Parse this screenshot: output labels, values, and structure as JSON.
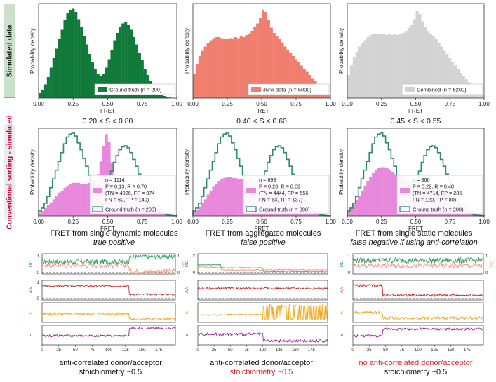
{
  "side_labels": {
    "top": "Simulated data",
    "middle": "Conventional sorting - simulated"
  },
  "colors": {
    "green": "#117a3a",
    "salmon": "#f07e6e",
    "gray": "#d3d3d3",
    "pink": "#e888dc",
    "ground_truth_line": "#2f8c6a",
    "dd": "#2e9e5c",
    "da": "#f4978a",
    "aa": "#c0282b",
    "e": "#f0a818",
    "s": "#9b2590",
    "red_text": "#e0202a"
  },
  "chart_data": [
    {
      "type": "bar",
      "xlabel": "FRET",
      "ylabel": "Probability density",
      "xlim": [
        0,
        1
      ],
      "xticks": [
        "0.00",
        "0.25",
        "0.50",
        "0.75",
        "1.00"
      ],
      "bins": 50,
      "fill": "green",
      "values": [
        0.5,
        0.8,
        1.3,
        2.0,
        2.9,
        3.8,
        4.7,
        5.6,
        6.5,
        7.4,
        8.1,
        8.4,
        8.5,
        8.2,
        7.5,
        6.8,
        5.9,
        5.1,
        4.2,
        3.4,
        2.8,
        2.3,
        2.1,
        2.3,
        2.9,
        3.7,
        4.6,
        5.5,
        6.2,
        6.8,
        7.1,
        7.2,
        7.0,
        6.5,
        5.8,
        5.1,
        4.3,
        3.6,
        2.8,
        2.2,
        1.6,
        1.1,
        0.7,
        0.5,
        0.3,
        0.2,
        0.1,
        0.05,
        0.02,
        0.01
      ],
      "legend": "Ground truth (n = 200)"
    },
    {
      "type": "bar",
      "xlabel": "FRET",
      "ylabel": "Probability density",
      "xlim": [
        0,
        1
      ],
      "xticks": [
        "0.00",
        "0.25",
        "0.50",
        "0.75",
        "1.00"
      ],
      "bins": 50,
      "fill": "salmon",
      "values": [
        2.3,
        3.2,
        4.0,
        4.5,
        4.9,
        5.2,
        5.5,
        5.7,
        5.8,
        5.8,
        5.7,
        5.6,
        5.6,
        5.7,
        5.6,
        5.8,
        5.7,
        5.9,
        5.8,
        6.0,
        6.1,
        6.4,
        6.8,
        7.1,
        7.6,
        8.4,
        8.2,
        7.4,
        6.7,
        6.2,
        5.9,
        5.6,
        5.3,
        4.9,
        4.6,
        4.3,
        4.0,
        3.7,
        3.4,
        3.1,
        2.8,
        2.5,
        2.2,
        1.9,
        1.6,
        1.3,
        1.0,
        0.7,
        0.5,
        0.3
      ],
      "legend": "Junk data (n = 5000)"
    },
    {
      "type": "bar",
      "xlabel": "FRET",
      "ylabel": "Probability density",
      "xlim": [
        0,
        1
      ],
      "xticks": [
        "0.00",
        "0.25",
        "0.50",
        "0.75",
        "1.00"
      ],
      "bins": 50,
      "fill": "gray",
      "values": [
        2.2,
        3.1,
        3.9,
        4.4,
        4.9,
        5.2,
        5.5,
        5.8,
        6.0,
        6.1,
        6.1,
        6.1,
        6.1,
        6.1,
        6.0,
        6.1,
        6.0,
        6.1,
        6.0,
        6.1,
        6.2,
        6.4,
        6.7,
        7.0,
        7.5,
        8.3,
        8.0,
        7.3,
        6.8,
        6.4,
        6.1,
        5.9,
        5.6,
        5.2,
        4.9,
        4.5,
        4.2,
        3.8,
        3.4,
        3.1,
        2.8,
        2.4,
        2.1,
        1.8,
        1.5,
        1.2,
        0.9,
        0.7,
        0.5,
        0.3
      ],
      "legend": "Combined (n = 5200)"
    },
    {
      "type": "bar",
      "title": "0.20 < S < 0.80",
      "xlabel": "FRET",
      "ylabel": "Probability density",
      "xlim": [
        0,
        1
      ],
      "xticks": [
        "0.00",
        "0.25",
        "0.50",
        "0.75",
        "1.00"
      ],
      "bins": 50,
      "fill": "pink",
      "values": [
        0.3,
        0.5,
        0.8,
        1.1,
        1.4,
        1.7,
        2.0,
        2.4,
        2.6,
        2.9,
        3.1,
        3.3,
        3.4,
        3.4,
        3.4,
        3.3,
        3.3,
        3.3,
        3.4,
        3.6,
        3.8,
        4.3,
        5.6,
        7.2,
        8.4,
        7.6,
        5.5,
        3.8,
        3.2,
        3.0,
        2.8,
        2.6,
        2.5,
        2.4,
        2.3,
        2.2,
        2.1,
        2.0,
        1.8,
        1.6,
        1.4,
        1.2,
        1.0,
        0.8,
        0.6,
        0.4,
        0.3,
        0.2,
        0.1,
        0.05
      ],
      "outline_values": [
        0.5,
        0.8,
        1.3,
        2.0,
        2.9,
        3.8,
        4.7,
        5.6,
        6.5,
        7.4,
        8.1,
        8.4,
        8.5,
        8.2,
        7.5,
        6.8,
        5.9,
        5.1,
        4.2,
        3.4,
        2.8,
        2.3,
        2.1,
        2.3,
        2.9,
        3.7,
        4.6,
        5.5,
        6.2,
        6.8,
        7.1,
        7.2,
        7.0,
        6.5,
        5.8,
        5.1,
        4.3,
        3.6,
        2.8,
        2.2,
        1.6,
        1.1,
        0.7,
        0.5,
        0.3,
        0.2,
        0.1,
        0.05,
        0.02,
        0.01
      ],
      "legend": [
        "n = 1114",
        "P = 0.13, R = 0.70",
        "(TN = 4026, FP = 974",
        "FN = 60, TP = 140)",
        "Ground truth (n = 200)"
      ]
    },
    {
      "type": "bar",
      "title": "0.40 < S < 0.60",
      "xlabel": "FRET",
      "ylabel": "Probability density",
      "xlim": [
        0,
        1
      ],
      "xticks": [
        "0.00",
        "0.25",
        "0.50",
        "0.75",
        "1.00"
      ],
      "bins": 50,
      "fill": "pink",
      "values": [
        0.4,
        0.6,
        0.9,
        1.3,
        1.7,
        2.2,
        2.6,
        3.0,
        3.3,
        3.6,
        3.8,
        3.9,
        4.0,
        4.0,
        3.9,
        3.9,
        3.8,
        3.8,
        3.7,
        3.7,
        3.6,
        3.6,
        3.6,
        3.6,
        3.5,
        3.6,
        3.5,
        3.4,
        3.3,
        3.3,
        3.2,
        3.1,
        3.0,
        2.9,
        2.8,
        2.7,
        2.5,
        2.3,
        2.1,
        1.9,
        1.6,
        1.4,
        1.1,
        0.9,
        0.7,
        0.5,
        0.3,
        0.2,
        0.1,
        0.05
      ],
      "outline_values": [
        0.5,
        0.8,
        1.3,
        2.0,
        2.9,
        3.8,
        4.7,
        5.6,
        6.5,
        7.4,
        8.1,
        8.4,
        8.5,
        8.2,
        7.5,
        6.8,
        5.9,
        5.1,
        4.2,
        3.4,
        2.8,
        2.3,
        2.1,
        2.3,
        2.9,
        3.7,
        4.6,
        5.5,
        6.2,
        6.8,
        7.1,
        7.2,
        7.0,
        6.5,
        5.8,
        5.1,
        4.3,
        3.6,
        2.8,
        2.2,
        1.6,
        1.1,
        0.7,
        0.5,
        0.3,
        0.2,
        0.1,
        0.05,
        0.02,
        0.01
      ],
      "legend": [
        "n = 693",
        "P = 0.20, R = 0.69",
        "(TN = 4444, FP = 556",
        "FN = 63, TP = 137)",
        "Ground truth (n = 200)"
      ]
    },
    {
      "type": "bar",
      "title": "0.45 < S < 0.55",
      "xlabel": "FRET",
      "ylabel": "Probability density",
      "xlim": [
        0,
        1
      ],
      "xticks": [
        "0.00",
        "0.25",
        "0.50",
        "0.75",
        "1.00"
      ],
      "bins": 50,
      "fill": "pink",
      "values": [
        0.5,
        0.8,
        1.2,
        1.6,
        2.1,
        2.6,
        3.1,
        3.6,
        4.0,
        4.4,
        4.7,
        4.9,
        5.0,
        5.0,
        4.9,
        4.7,
        4.5,
        4.3,
        4.1,
        3.9,
        3.8,
        3.7,
        3.6,
        3.6,
        3.5,
        3.5,
        3.4,
        3.3,
        3.2,
        3.1,
        3.0,
        2.9,
        2.8,
        2.7,
        2.6,
        2.5,
        2.3,
        2.2,
        2.0,
        1.8,
        1.6,
        1.4,
        1.2,
        1.0,
        0.8,
        0.6,
        0.4,
        0.3,
        0.2,
        0.1
      ],
      "outline_values": [
        0.5,
        0.8,
        1.3,
        2.0,
        2.9,
        3.8,
        4.7,
        5.6,
        6.5,
        7.4,
        8.1,
        8.4,
        8.5,
        8.2,
        7.5,
        6.8,
        5.9,
        5.1,
        4.2,
        3.4,
        2.8,
        2.3,
        2.1,
        2.3,
        2.9,
        3.7,
        4.6,
        5.5,
        6.2,
        6.8,
        7.1,
        7.2,
        7.0,
        6.5,
        5.8,
        5.1,
        4.3,
        3.6,
        2.8,
        2.2,
        1.6,
        1.1,
        0.7,
        0.5,
        0.3,
        0.2,
        0.1,
        0.05,
        0.02,
        0.01
      ],
      "legend": [
        "n = 366",
        "P = 0.22, R = 0.40",
        "(TN = 4714, FP = 286",
        "FN = 120, TP = 80)",
        "Ground truth (n = 200)"
      ]
    },
    {
      "type": "line",
      "kind": "traces",
      "xlim": [
        0,
        200
      ],
      "xticks": [
        "0",
        "25",
        "50",
        "75",
        "100",
        "125",
        "150",
        "175"
      ],
      "panels": [
        {
          "ylabel": "DD",
          "right_label": "DA",
          "ylim": [
            0,
            1
          ],
          "yticks": [
            "0",
            "1"
          ],
          "dashed_zero": true,
          "series": [
            {
              "color": "dd",
              "segments": [
                [
                  0,
                  130,
                  0.62
                ],
                [
                  130,
                  200,
                  0.92
                ]
              ],
              "noise": 0.14
            },
            {
              "color": "da",
              "segments": [
                [
                  0,
                  130,
                  0.42
                ],
                [
                  130,
                  200,
                  0.08
                ]
              ],
              "noise": 0.14
            }
          ]
        },
        {
          "ylabel": "AA",
          "ylim": [
            0,
            1
          ],
          "yticks": [
            "0",
            "1"
          ],
          "dashed_zero": true,
          "series": [
            {
              "color": "aa",
              "segments": [
                [
                  0,
                  130,
                  0.75
                ],
                [
                  130,
                  200,
                  0.25
                ]
              ],
              "noise": 0.05
            }
          ]
        },
        {
          "ylabel": "E",
          "ylim": [
            0,
            1
          ],
          "series": [
            {
              "color": "e",
              "segments": [
                [
                  0,
                  130,
                  0.42
                ],
                [
                  130,
                  200,
                  0.12
                ]
              ],
              "noise": 0.07
            }
          ]
        },
        {
          "ylabel": "S",
          "ylim": [
            0,
            1
          ],
          "series": [
            {
              "color": "s",
              "segments": [
                [
                  0,
                  130,
                  0.45
                ],
                [
                  130,
                  200,
                  0.9
                ]
              ],
              "noise": 0.06
            }
          ]
        }
      ]
    },
    {
      "type": "line",
      "kind": "traces",
      "xlim": [
        0,
        200
      ],
      "xticks": [
        "0",
        "25",
        "50",
        "75",
        "100",
        "125",
        "150",
        "175"
      ],
      "panels": [
        {
          "ylabel": "DD",
          "right_label": "DA",
          "ylim": [
            0,
            2
          ],
          "yticks": [
            "0",
            "2"
          ],
          "dashed_zero": true,
          "series": [
            {
              "color": "dd",
              "segments": [
                [
                  0,
                  35,
                  0.9
                ],
                [
                  35,
                  100,
                  0.55
                ],
                [
                  100,
                  200,
                  0.15
                ]
              ],
              "noise": 0.04
            },
            {
              "color": "da",
              "segments": [
                [
                  0,
                  35,
                  0.62
                ],
                [
                  35,
                  200,
                  0.32
                ]
              ],
              "noise": 0.07
            }
          ]
        },
        {
          "ylabel": "AA",
          "ylim": [
            0,
            1
          ],
          "dashed_zero": true,
          "series": [
            {
              "color": "aa",
              "segments": [
                [
                  0,
                  200,
                  0.6
                ]
              ],
              "noise": 0.06
            }
          ]
        },
        {
          "ylabel": "E",
          "ylim": [
            0,
            1
          ],
          "series": [
            {
              "color": "e",
              "segments": [
                [
                  0,
                  35,
                  0.35
                ],
                [
                  35,
                  100,
                  0.38
                ]
              ],
              "noise": 0.04,
              "burst_from": 100
            }
          ]
        },
        {
          "ylabel": "S",
          "ylim": [
            0,
            1
          ],
          "series": [
            {
              "color": "s",
              "segments": [
                [
                  0,
                  100,
                  0.55
                ],
                [
                  100,
                  200,
                  0.15
                ]
              ],
              "noise": 0.08
            }
          ]
        }
      ]
    },
    {
      "type": "line",
      "kind": "traces",
      "xlim": [
        0,
        200
      ],
      "xticks": [
        "0",
        "25",
        "50",
        "75",
        "100",
        "125",
        "150",
        "175"
      ],
      "panels": [
        {
          "ylabel": "DD",
          "right_label": "DA",
          "ylim": [
            0,
            1
          ],
          "yticks": [
            "0",
            "1"
          ],
          "series": [
            {
              "color": "dd",
              "segments": [
                [
                  0,
                  200,
                  0.7
                ]
              ],
              "noise": 0.16
            },
            {
              "color": "da",
              "segments": [
                [
                  0,
                  200,
                  0.4
                ]
              ],
              "noise": 0.14
            }
          ]
        },
        {
          "ylabel": "AA",
          "ylim": [
            0,
            1
          ],
          "dashed_zero": true,
          "series": [
            {
              "color": "aa",
              "segments": [
                [
                  0,
                  45,
                  0.78
                ],
                [
                  45,
                  200,
                  0.2
                ]
              ],
              "noise": 0.07
            }
          ]
        },
        {
          "ylabel": "E",
          "ylim": [
            0,
            1
          ],
          "series": [
            {
              "color": "e",
              "segments": [
                [
                  0,
                  45,
                  0.5
                ],
                [
                  45,
                  200,
                  0.18
                ]
              ],
              "noise": 0.08
            }
          ]
        },
        {
          "ylabel": "S",
          "ylim": [
            0,
            1
          ],
          "series": [
            {
              "color": "s",
              "segments": [
                [
                  0,
                  45,
                  0.45
                ],
                [
                  45,
                  200,
                  0.85
                ]
              ],
              "noise": 0.07
            }
          ]
        }
      ]
    }
  ],
  "trace_titles": [
    {
      "line1": "FRET from single dynamic molecules",
      "line2": "true positive"
    },
    {
      "line1": "FRET from aggregated molecules",
      "line2": "false positive"
    },
    {
      "line1": "FRET from single static molecules",
      "line2": "false negative if using anti-correlation"
    }
  ],
  "captions": [
    {
      "line1": "anti-correlated donor/acceptor",
      "line2": "stoichiometry ~0.5",
      "red1": false,
      "red2": false
    },
    {
      "line1": "anti-correlated donor/acceptor",
      "line2": "stoichiometry ~0.5",
      "red1": false,
      "red2": true
    },
    {
      "line1": "no anti-correlated donor/acceptor",
      "line2": "stoichiometry ~0.5",
      "red1": true,
      "red2": false
    }
  ]
}
